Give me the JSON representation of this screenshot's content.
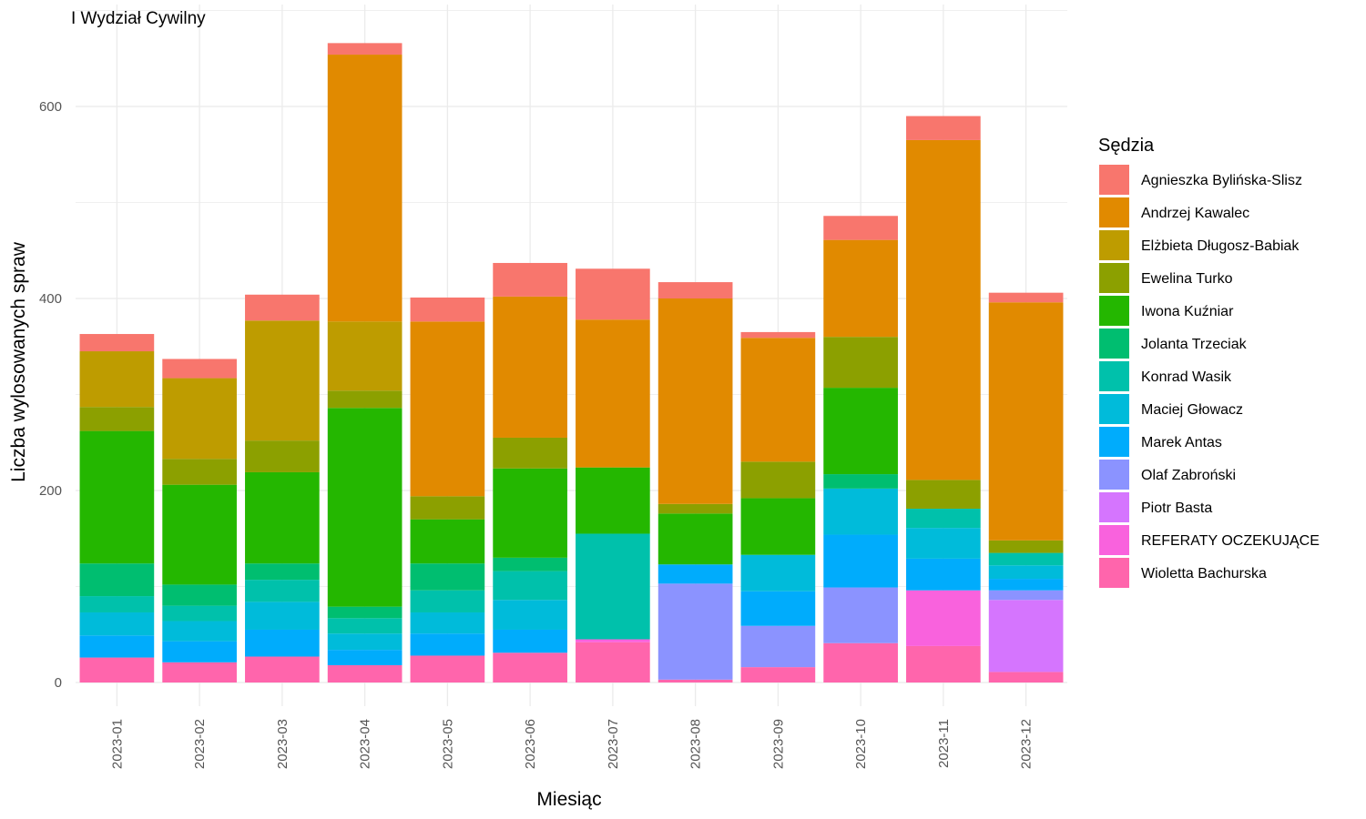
{
  "chart_data": {
    "type": "bar",
    "stacked": true,
    "title": "I Wydział Cywilny",
    "xlabel": "Miesiąc",
    "ylabel": "Liczba wylosowanych spraw",
    "ylim": [
      -15,
      700
    ],
    "yticks": [
      0,
      200,
      400,
      600
    ],
    "grid": true,
    "legend_title": "Sędzia",
    "legend_position": "right",
    "categories": [
      "2023-01",
      "2023-02",
      "2023-03",
      "2023-04",
      "2023-05",
      "2023-06",
      "2023-07",
      "2023-08",
      "2023-09",
      "2023-10",
      "2023-11",
      "2023-12"
    ],
    "series": [
      {
        "name": "Agnieszka Bylińska-Slisz",
        "color": "#F8766D",
        "values": [
          18,
          20,
          27,
          12,
          25,
          35,
          53,
          17,
          6,
          25,
          25,
          10
        ]
      },
      {
        "name": "Andrzej Kawalec",
        "color": "#E18A00",
        "values": [
          0,
          0,
          0,
          278,
          182,
          147,
          154,
          214,
          129,
          101,
          354,
          248
        ]
      },
      {
        "name": "Elżbieta Długosz-Babiak",
        "color": "#BE9C00",
        "values": [
          58,
          84,
          125,
          72,
          0,
          0,
          0,
          0,
          0,
          0,
          0,
          0
        ]
      },
      {
        "name": "Ewelina Turko",
        "color": "#8CA000",
        "values": [
          25,
          27,
          33,
          18,
          24,
          32,
          0,
          10,
          38,
          53,
          30,
          13
        ]
      },
      {
        "name": "Iwona Kuźniar",
        "color": "#24B700",
        "values": [
          138,
          104,
          95,
          207,
          46,
          93,
          69,
          53,
          59,
          90,
          0,
          0
        ]
      },
      {
        "name": "Jolanta Trzeciak",
        "color": "#00BE70",
        "values": [
          34,
          22,
          17,
          12,
          28,
          14,
          0,
          0,
          0,
          15,
          0,
          0
        ]
      },
      {
        "name": "Konrad Wasik",
        "color": "#00C1AB",
        "values": [
          17,
          16,
          23,
          16,
          23,
          30,
          110,
          0,
          0,
          0,
          20,
          13
        ]
      },
      {
        "name": "Maciej Głowacz",
        "color": "#00BBDA",
        "values": [
          24,
          21,
          29,
          17,
          22,
          31,
          0,
          0,
          38,
          48,
          32,
          14
        ]
      },
      {
        "name": "Marek Antas",
        "color": "#00ACFC",
        "values": [
          23,
          22,
          28,
          16,
          23,
          24,
          0,
          20,
          36,
          55,
          33,
          12
        ]
      },
      {
        "name": "Olaf Zabroński",
        "color": "#8B93FF",
        "values": [
          0,
          0,
          0,
          0,
          0,
          0,
          0,
          100,
          43,
          58,
          0,
          10
        ]
      },
      {
        "name": "Piotr Basta",
        "color": "#D575FE",
        "values": [
          0,
          0,
          0,
          0,
          0,
          0,
          0,
          0,
          0,
          0,
          0,
          75
        ]
      },
      {
        "name": "REFERATY OCZEKUJĄCE",
        "color": "#F962DD",
        "values": [
          0,
          0,
          0,
          0,
          0,
          0,
          3,
          0,
          0,
          0,
          58,
          0
        ]
      },
      {
        "name": "Wioletta Bachurska",
        "color": "#FF65AC",
        "values": [
          26,
          21,
          27,
          18,
          28,
          31,
          42,
          3,
          16,
          41,
          38,
          11
        ]
      }
    ]
  }
}
